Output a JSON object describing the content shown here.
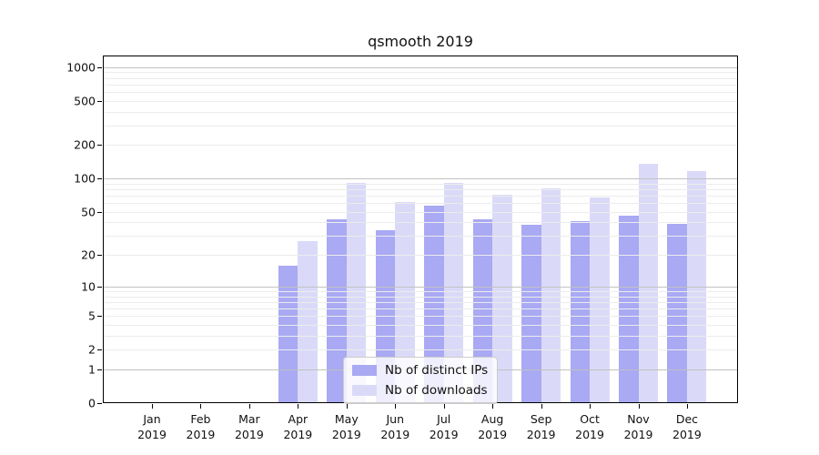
{
  "chart_data": {
    "type": "bar",
    "title": "qsmooth 2019",
    "x": {
      "months": [
        "Jan",
        "Feb",
        "Mar",
        "Apr",
        "May",
        "Jun",
        "Jul",
        "Aug",
        "Sep",
        "Oct",
        "Nov",
        "Dec"
      ],
      "year": "2019"
    },
    "series": [
      {
        "name": "Nb of distinct IPs",
        "color": "#a9a9f4",
        "values": [
          0,
          0,
          0,
          16,
          43,
          34,
          57,
          43,
          38,
          41,
          46,
          39
        ]
      },
      {
        "name": "Nb of downloads",
        "color": "#dadaf8",
        "values": [
          0,
          0,
          0,
          27,
          91,
          62,
          91,
          72,
          81,
          67,
          137,
          116
        ]
      }
    ],
    "yscale": "log1p",
    "ylim": [
      0,
      1290
    ],
    "ytick_labels": [
      0,
      1,
      2,
      5,
      10,
      20,
      50,
      100,
      200,
      500,
      1000
    ],
    "grid": {
      "major_values": [
        1,
        10,
        100,
        1000
      ],
      "minor_values": [
        2,
        3,
        4,
        5,
        6,
        7,
        8,
        9,
        20,
        30,
        40,
        50,
        60,
        70,
        80,
        90,
        200,
        300,
        400,
        500,
        600,
        700,
        800,
        900
      ],
      "major_color": "#c2c2c2",
      "minor_color": "#ececec"
    },
    "legend_position": "lower center"
  },
  "colors": {
    "spine": "#000000",
    "text": "#111111",
    "legend_border": "#cccccc",
    "legend_background": "rgba(255,255,255,0.8)"
  }
}
